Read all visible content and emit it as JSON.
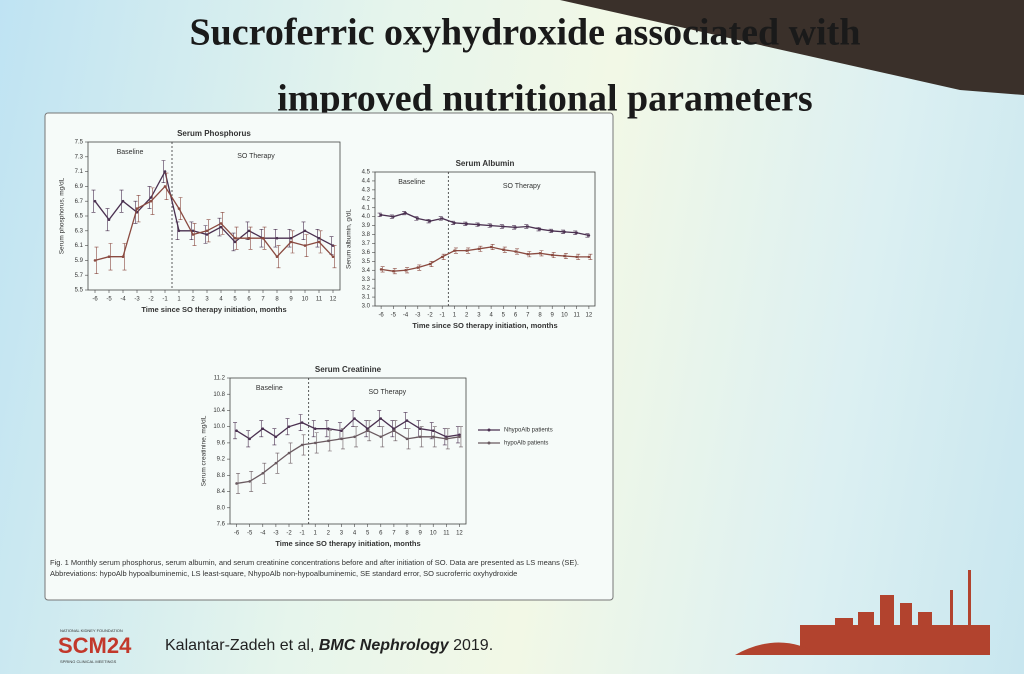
{
  "slide": {
    "title_lines": [
      "Sucroferric oxyhydroxide associated with",
      "improved nutritional parameters"
    ],
    "caption": "Fig. 1 Monthly serum phosphorus, serum albumin, and serum creatinine concentrations before and after initiation of SO. Data are presented as LS means (SE). Abbreviations: hypoAlb hypoalbuminemic, LS least-square, NhypoAlb non-hypoalbuminemic, SE standard error, SO sucroferric oxyhydroxide",
    "logo_org": "NATIONAL KIDNEY FOUNDATION",
    "logo": "SCM24",
    "logo_sub": "SPRING CLINICAL MEETINGS",
    "citation_authors": "Kalantar-Zadeh et al,",
    "citation_journal": "BMC Nephrology",
    "citation_year": "2019."
  },
  "chart_data": [
    {
      "type": "line",
      "title": "Serum Phosphorus",
      "x_label": "Time since SO therapy initiation, months",
      "y_label": "Serum phosphorus, mg/dL",
      "baseline_label": "Baseline",
      "therapy_label": "SO Therapy",
      "categories": [
        "-6",
        "-5",
        "-4",
        "-3",
        "-2",
        "-1",
        "1",
        "2",
        "3",
        "4",
        "5",
        "6",
        "7",
        "8",
        "9",
        "10",
        "11",
        "12"
      ],
      "ylim": [
        5.5,
        7.5
      ],
      "yticks": [
        5.5,
        5.7,
        5.9,
        6.1,
        6.3,
        6.5,
        6.7,
        6.9,
        7.1,
        7.3,
        7.5
      ],
      "series": [
        {
          "color": "#4a3050",
          "values": [
            6.7,
            6.45,
            6.7,
            6.55,
            6.75,
            7.1,
            6.3,
            6.3,
            6.25,
            6.35,
            6.15,
            6.3,
            6.2,
            6.2,
            6.2,
            6.3,
            6.2,
            6.1
          ],
          "errors": [
            0.15,
            0.15,
            0.15,
            0.15,
            0.15,
            0.15,
            0.12,
            0.12,
            0.12,
            0.12,
            0.12,
            0.12,
            0.12,
            0.12,
            0.12,
            0.12,
            0.12,
            0.12
          ]
        },
        {
          "color": "#8a4a40",
          "values": [
            5.9,
            5.95,
            5.95,
            6.6,
            6.7,
            6.9,
            6.6,
            6.25,
            6.3,
            6.4,
            6.2,
            6.2,
            6.2,
            5.95,
            6.15,
            6.1,
            6.15,
            5.95
          ],
          "errors": [
            0.18,
            0.18,
            0.18,
            0.18,
            0.18,
            0.18,
            0.15,
            0.15,
            0.15,
            0.15,
            0.15,
            0.15,
            0.15,
            0.15,
            0.15,
            0.15,
            0.15,
            0.15
          ]
        }
      ]
    },
    {
      "type": "line",
      "title": "Serum Albumin",
      "x_label": "Time since SO therapy initiation, months",
      "y_label": "Serum albumin, g/dL",
      "baseline_label": "Baseline",
      "therapy_label": "SO Therapy",
      "categories": [
        "-6",
        "-5",
        "-4",
        "-3",
        "-2",
        "-1",
        "1",
        "2",
        "3",
        "4",
        "5",
        "6",
        "7",
        "8",
        "9",
        "10",
        "11",
        "12"
      ],
      "ylim": [
        3.0,
        4.5
      ],
      "yticks": [
        {
          "value": 3,
          "label": "3.0"
        },
        3.1,
        3.2,
        3.3,
        3.4,
        3.5,
        3.6,
        3.7,
        3.8,
        3.9,
        {
          "value": 4,
          "label": "4.0"
        },
        4.1,
        4.2,
        4.3,
        4.4,
        4.5
      ],
      "series": [
        {
          "color": "#4a3050",
          "values": [
            4.02,
            4.0,
            4.04,
            3.98,
            3.95,
            3.98,
            3.93,
            3.92,
            3.91,
            3.9,
            3.89,
            3.88,
            3.89,
            3.86,
            3.84,
            3.83,
            3.82,
            3.79
          ],
          "errors": [
            0.02,
            0.02,
            0.02,
            0.02,
            0.02,
            0.02,
            0.02,
            0.02,
            0.02,
            0.02,
            0.02,
            0.02,
            0.02,
            0.02,
            0.02,
            0.02,
            0.02,
            0.02
          ]
        },
        {
          "color": "#8a4a40",
          "values": [
            3.41,
            3.39,
            3.4,
            3.43,
            3.47,
            3.55,
            3.62,
            3.62,
            3.64,
            3.66,
            3.63,
            3.61,
            3.58,
            3.59,
            3.57,
            3.56,
            3.55,
            3.55
          ],
          "errors": [
            0.03,
            0.03,
            0.03,
            0.03,
            0.03,
            0.03,
            0.03,
            0.03,
            0.03,
            0.03,
            0.03,
            0.03,
            0.03,
            0.03,
            0.03,
            0.03,
            0.03,
            0.03
          ]
        }
      ]
    },
    {
      "type": "line",
      "title": "Serum Creatinine",
      "x_label": "Time since SO therapy initiation, months",
      "y_label": "Serum creatinine, mg/dL",
      "baseline_label": "Baseline",
      "therapy_label": "SO Therapy",
      "categories": [
        "-6",
        "-5",
        "-4",
        "-3",
        "-2",
        "-1",
        "1",
        "2",
        "3",
        "4",
        "5",
        "6",
        "7",
        "8",
        "9",
        "10",
        "11",
        "12"
      ],
      "ylim": [
        7.6,
        11.2
      ],
      "yticks": [
        7.6,
        {
          "value": 8,
          "label": "8.0"
        },
        8.4,
        8.8,
        9.2,
        9.6,
        {
          "value": 10,
          "label": "10.0"
        },
        10.4,
        10.8,
        11.2
      ],
      "legend": "right",
      "series": [
        {
          "name": "NhypoAlb patients",
          "color": "#4a3050",
          "values": [
            9.9,
            9.7,
            9.95,
            9.75,
            10.0,
            10.1,
            9.95,
            9.95,
            9.9,
            10.2,
            9.95,
            10.2,
            9.95,
            10.15,
            9.95,
            9.9,
            9.75,
            9.8
          ],
          "errors": [
            0.2,
            0.2,
            0.2,
            0.2,
            0.2,
            0.2,
            0.2,
            0.2,
            0.2,
            0.2,
            0.2,
            0.2,
            0.2,
            0.2,
            0.2,
            0.2,
            0.2,
            0.2
          ]
        },
        {
          "name": "hypoAlb patients",
          "color": "#6a5a60",
          "values": [
            8.6,
            8.65,
            8.85,
            9.1,
            9.35,
            9.55,
            9.6,
            9.65,
            9.7,
            9.75,
            9.9,
            9.75,
            9.9,
            9.7,
            9.75,
            9.75,
            9.7,
            9.75
          ],
          "errors": [
            0.25,
            0.25,
            0.25,
            0.25,
            0.25,
            0.25,
            0.25,
            0.25,
            0.25,
            0.25,
            0.25,
            0.25,
            0.25,
            0.25,
            0.25,
            0.25,
            0.25,
            0.25
          ]
        }
      ]
    }
  ]
}
